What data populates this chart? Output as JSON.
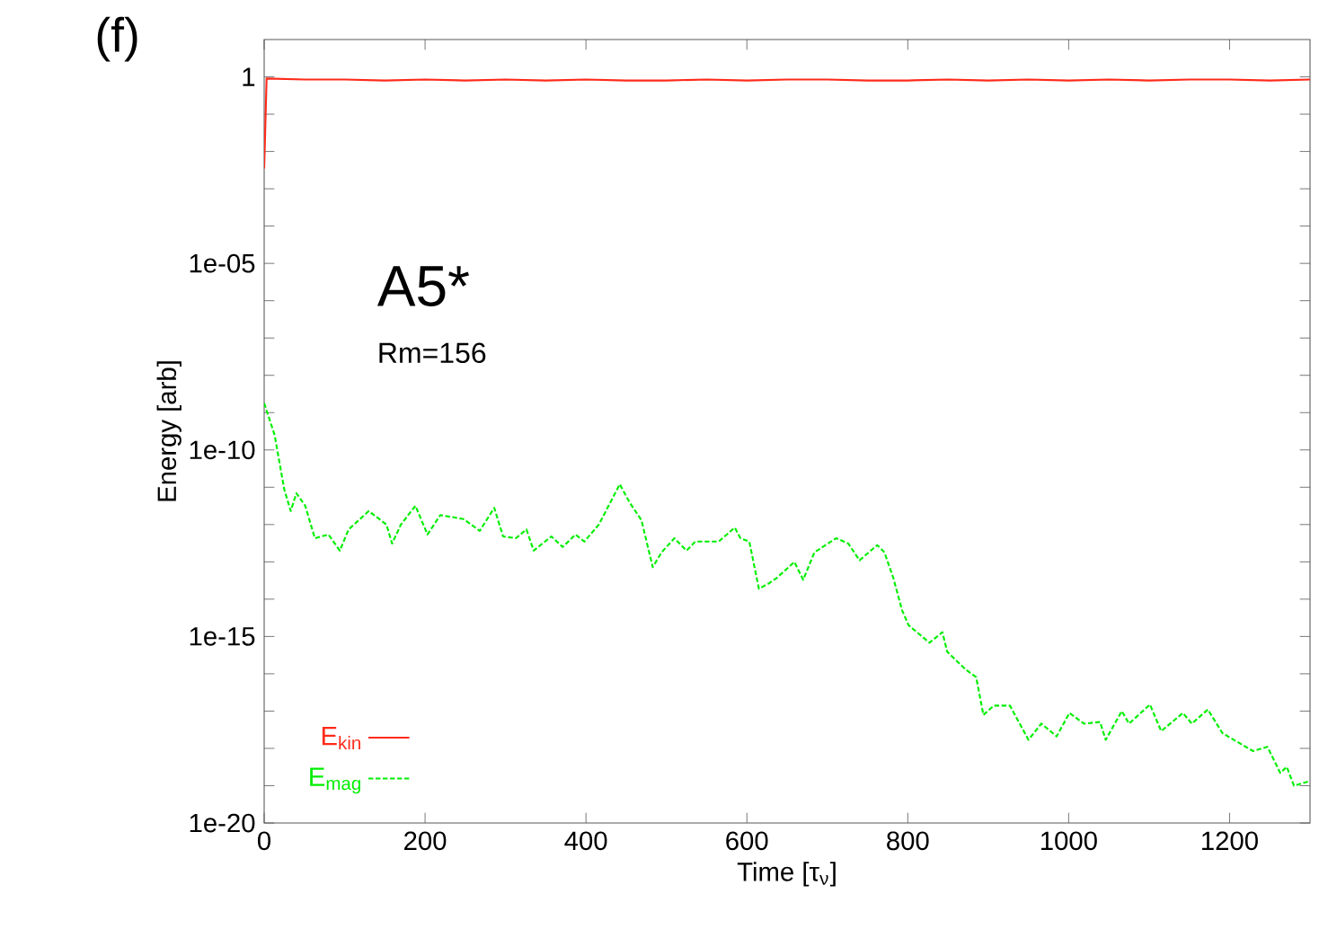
{
  "chart_data": {
    "type": "line",
    "title": "(f)",
    "xlabel": "Time [τ$_{ν}$]",
    "ylabel": "Energy [arb]",
    "annotations": [
      "A5*",
      "Rm=156"
    ],
    "xlim": [
      0,
      1300
    ],
    "xticks": [
      0,
      200,
      400,
      600,
      800,
      1000,
      1200
    ],
    "ylim": [
      1e-20,
      10
    ],
    "log": "y",
    "yticks": [
      1,
      {
        "value": 0.1,
        "label": null
      },
      {
        "value": 0.01,
        "label": null
      },
      {
        "value": 0.001,
        "label": null
      },
      {
        "value": 0.0001,
        "label": null
      },
      {
        "value": 1e-05,
        "label": "1e-05"
      },
      {
        "value": 1e-06,
        "label": null
      },
      {
        "value": 1e-07,
        "label": null
      },
      {
        "value": 1e-08,
        "label": null
      },
      {
        "value": 1e-09,
        "label": null
      },
      {
        "value": 1e-10,
        "label": "1e-10"
      },
      {
        "value": 1e-11,
        "label": null
      },
      {
        "value": 1e-12,
        "label": null
      },
      {
        "value": 1e-13,
        "label": null
      },
      {
        "value": 1e-14,
        "label": null
      },
      {
        "value": 1e-15,
        "label": "1e-15"
      },
      {
        "value": 1e-16,
        "label": null
      },
      {
        "value": 1e-17,
        "label": null
      },
      {
        "value": 1e-18,
        "label": null
      },
      {
        "value": 1e-19,
        "label": null
      },
      {
        "value": 1e-20,
        "label": "1e-20"
      }
    ],
    "legend": "bottom left",
    "marker": "none",
    "series": [
      {
        "name": "E$_{kin}$",
        "color": "#ff2a1a",
        "line_style": "solid",
        "x": [
          0,
          3,
          50,
          100,
          150,
          200,
          250,
          300,
          350,
          400,
          450,
          500,
          550,
          600,
          650,
          700,
          750,
          800,
          850,
          900,
          950,
          1000,
          1050,
          1100,
          1150,
          1200,
          1250,
          1300
        ],
        "values": [
          0.0035,
          0.9,
          0.85,
          0.85,
          0.8,
          0.85,
          0.8,
          0.85,
          0.8,
          0.85,
          0.8,
          0.8,
          0.85,
          0.8,
          0.85,
          0.85,
          0.8,
          0.8,
          0.85,
          0.8,
          0.85,
          0.8,
          0.85,
          0.8,
          0.85,
          0.85,
          0.8,
          0.85
        ]
      },
      {
        "name": "E$_{mag}$",
        "color": "#00ee00",
        "line_style": "dashed",
        "x": [
          0,
          13,
          25,
          33,
          40,
          51,
          63,
          80,
          94,
          105,
          130,
          152,
          159,
          170,
          188,
          203,
          219,
          248,
          268,
          286,
          297,
          313,
          326,
          335,
          357,
          371,
          387,
          398,
          416,
          442,
          454,
          469,
          483,
          494,
          510,
          525,
          536,
          565,
          585,
          592,
          603,
          615,
          628,
          637,
          652,
          659,
          670,
          684,
          711,
          726,
          740,
          762,
          771,
          782,
          793,
          801,
          827,
          843,
          849,
          872,
          885,
          894,
          907,
          927,
          950,
          966,
          985,
          1001,
          1019,
          1039,
          1046,
          1066,
          1075,
          1101,
          1115,
          1142,
          1153,
          1173,
          1191,
          1198,
          1229,
          1247,
          1263,
          1271,
          1280,
          1298
        ],
        "values": [
          1.8e-09,
          2.5e-10,
          8.7e-12,
          2.3e-12,
          6.9e-12,
          3.2e-12,
          4.3e-13,
          5.4e-13,
          2e-13,
          7.4e-13,
          2.3e-12,
          1e-12,
          3.1e-13,
          1e-12,
          3.2e-12,
          5.4e-13,
          1.8e-12,
          1.4e-12,
          6.8e-13,
          2.8e-12,
          4.8e-13,
          4.3e-13,
          7.4e-13,
          2e-13,
          4.8e-13,
          2.5e-13,
          5.4e-13,
          3.5e-13,
          1e-12,
          1.2e-11,
          4e-12,
          1.3e-12,
          7.2e-14,
          1.8e-13,
          4.3e-13,
          2e-13,
          3.5e-13,
          3.5e-13,
          8.3e-13,
          4.3e-13,
          3.5e-13,
          1.9e-14,
          2.7e-14,
          3.7e-14,
          7.2e-14,
          1e-13,
          3.3e-14,
          1.8e-13,
          4.3e-13,
          3.1e-13,
          1.1e-13,
          2.8e-13,
          1.8e-13,
          3.7e-14,
          5e-15,
          2e-15,
          6.8e-16,
          1.3e-15,
          3.9e-16,
          1.3e-16,
          8.1e-17,
          7.9e-18,
          1.4e-17,
          1.4e-17,
          1.7e-18,
          4.6e-18,
          2.1e-18,
          8.9e-18,
          4.6e-18,
          5.1e-18,
          1.7e-18,
          1e-17,
          4.6e-18,
          1.5e-17,
          2.9e-18,
          8.9e-18,
          4.6e-18,
          1.1e-17,
          2.6e-18,
          2.1e-18,
          8.5e-19,
          1.1e-18,
          2.2e-19,
          3.2e-19,
          1e-19,
          1.3e-19
        ]
      }
    ]
  }
}
